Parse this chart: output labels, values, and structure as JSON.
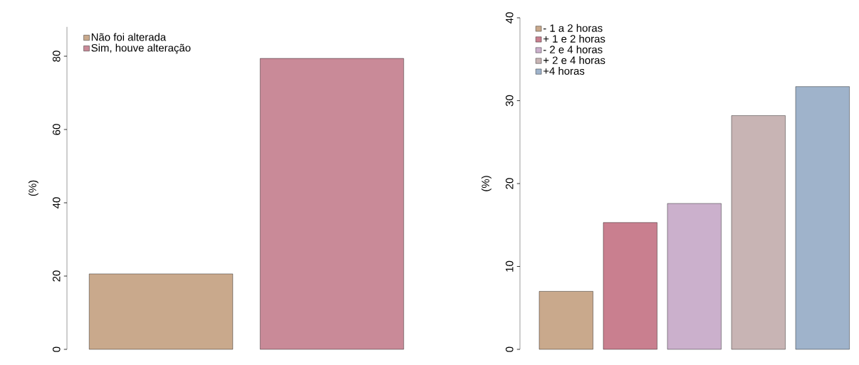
{
  "chart_data": [
    {
      "type": "bar",
      "stacked": true,
      "categories": [
        null,
        null
      ],
      "ylabel": "(%)",
      "ylim": [
        0,
        88
      ],
      "yticks": [
        0,
        20,
        40,
        60,
        80
      ],
      "legend": "top left",
      "series": [
        {
          "name": "Não foi alterada",
          "color": "#c9a98c",
          "values": [
            20.6,
            null
          ]
        },
        {
          "name": "Sim, houve alteração",
          "color": "#c98a98",
          "values": [
            null,
            79.4
          ]
        }
      ]
    },
    {
      "type": "bar",
      "stacked": true,
      "categories": [
        null,
        null,
        null,
        null,
        null
      ],
      "ylabel": "(%)",
      "ylim": [
        0,
        40
      ],
      "yticks": [
        0,
        10,
        20,
        30,
        40
      ],
      "legend": "top left",
      "series": [
        {
          "name": "- 1 a 2 horas",
          "color": "#c9a98c",
          "values": [
            7.0,
            null,
            null,
            null,
            null
          ]
        },
        {
          "name": "+ 1 e 2 horas",
          "color": "#c97f8f",
          "values": [
            null,
            15.3,
            null,
            null,
            null
          ]
        },
        {
          "name": "- 2 e 4 horas",
          "color": "#cbb0cc",
          "values": [
            null,
            null,
            17.6,
            null,
            null
          ]
        },
        {
          "name": "+ 2 e 4 horas",
          "color": "#c8b4b4",
          "values": [
            null,
            null,
            null,
            28.2,
            null
          ]
        },
        {
          "name": "+4 horas",
          "color": "#9fb3cb",
          "values": [
            null,
            null,
            null,
            null,
            31.7
          ]
        }
      ]
    }
  ]
}
